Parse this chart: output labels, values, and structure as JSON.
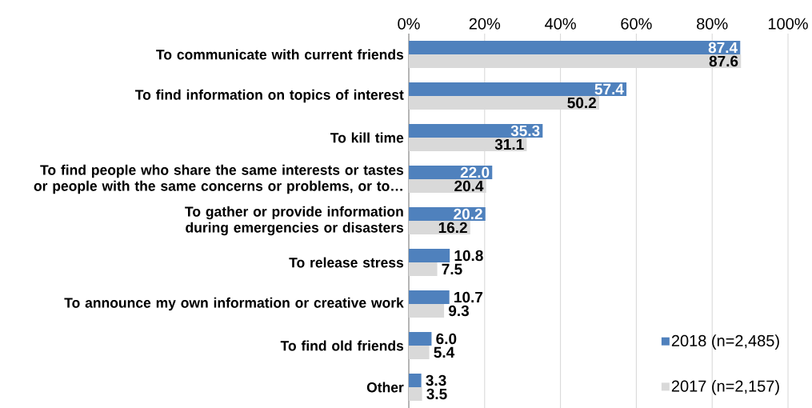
{
  "chart_data": {
    "type": "bar",
    "orientation": "horizontal",
    "categories": [
      "To communicate with current friends",
      "To find information on topics of interest",
      "To kill time",
      "To find people who share the same interests or tastes or people with the same concerns or problems, or to…",
      "To gather or provide information during emergencies or disasters",
      "To release stress",
      "To announce my own information or creative work",
      "To find old friends",
      "Other"
    ],
    "series": [
      {
        "name": "2018 (n=2,485)",
        "color": "#4f81bd",
        "values": [
          87.4,
          57.4,
          35.3,
          22.0,
          20.2,
          10.8,
          10.7,
          6.0,
          3.3
        ],
        "value_labels": [
          "87.4",
          "57.4",
          "35.3",
          "22.0",
          "20.2",
          "10.8",
          "10.7",
          "6.0",
          "3.3"
        ]
      },
      {
        "name": "2017 (n=2,157)",
        "color": "#d9d9d9",
        "values": [
          87.6,
          50.2,
          31.1,
          20.4,
          16.2,
          7.5,
          9.3,
          5.4,
          3.5
        ],
        "value_labels": [
          "87.6",
          "50.2",
          "31.1",
          "20.4",
          "16.2",
          "7.5",
          "9.3",
          "5.4",
          "3.5"
        ]
      }
    ],
    "xlim": [
      0,
      100
    ],
    "xticks": [
      {
        "value": 0,
        "label": "0%"
      },
      {
        "value": 20,
        "label": "20%"
      },
      {
        "value": 40,
        "label": "40%"
      },
      {
        "value": 60,
        "label": "60%"
      },
      {
        "value": 80,
        "label": "80%"
      },
      {
        "value": 100,
        "label": "100%"
      }
    ],
    "grid": "x",
    "legend": "bottom right"
  }
}
